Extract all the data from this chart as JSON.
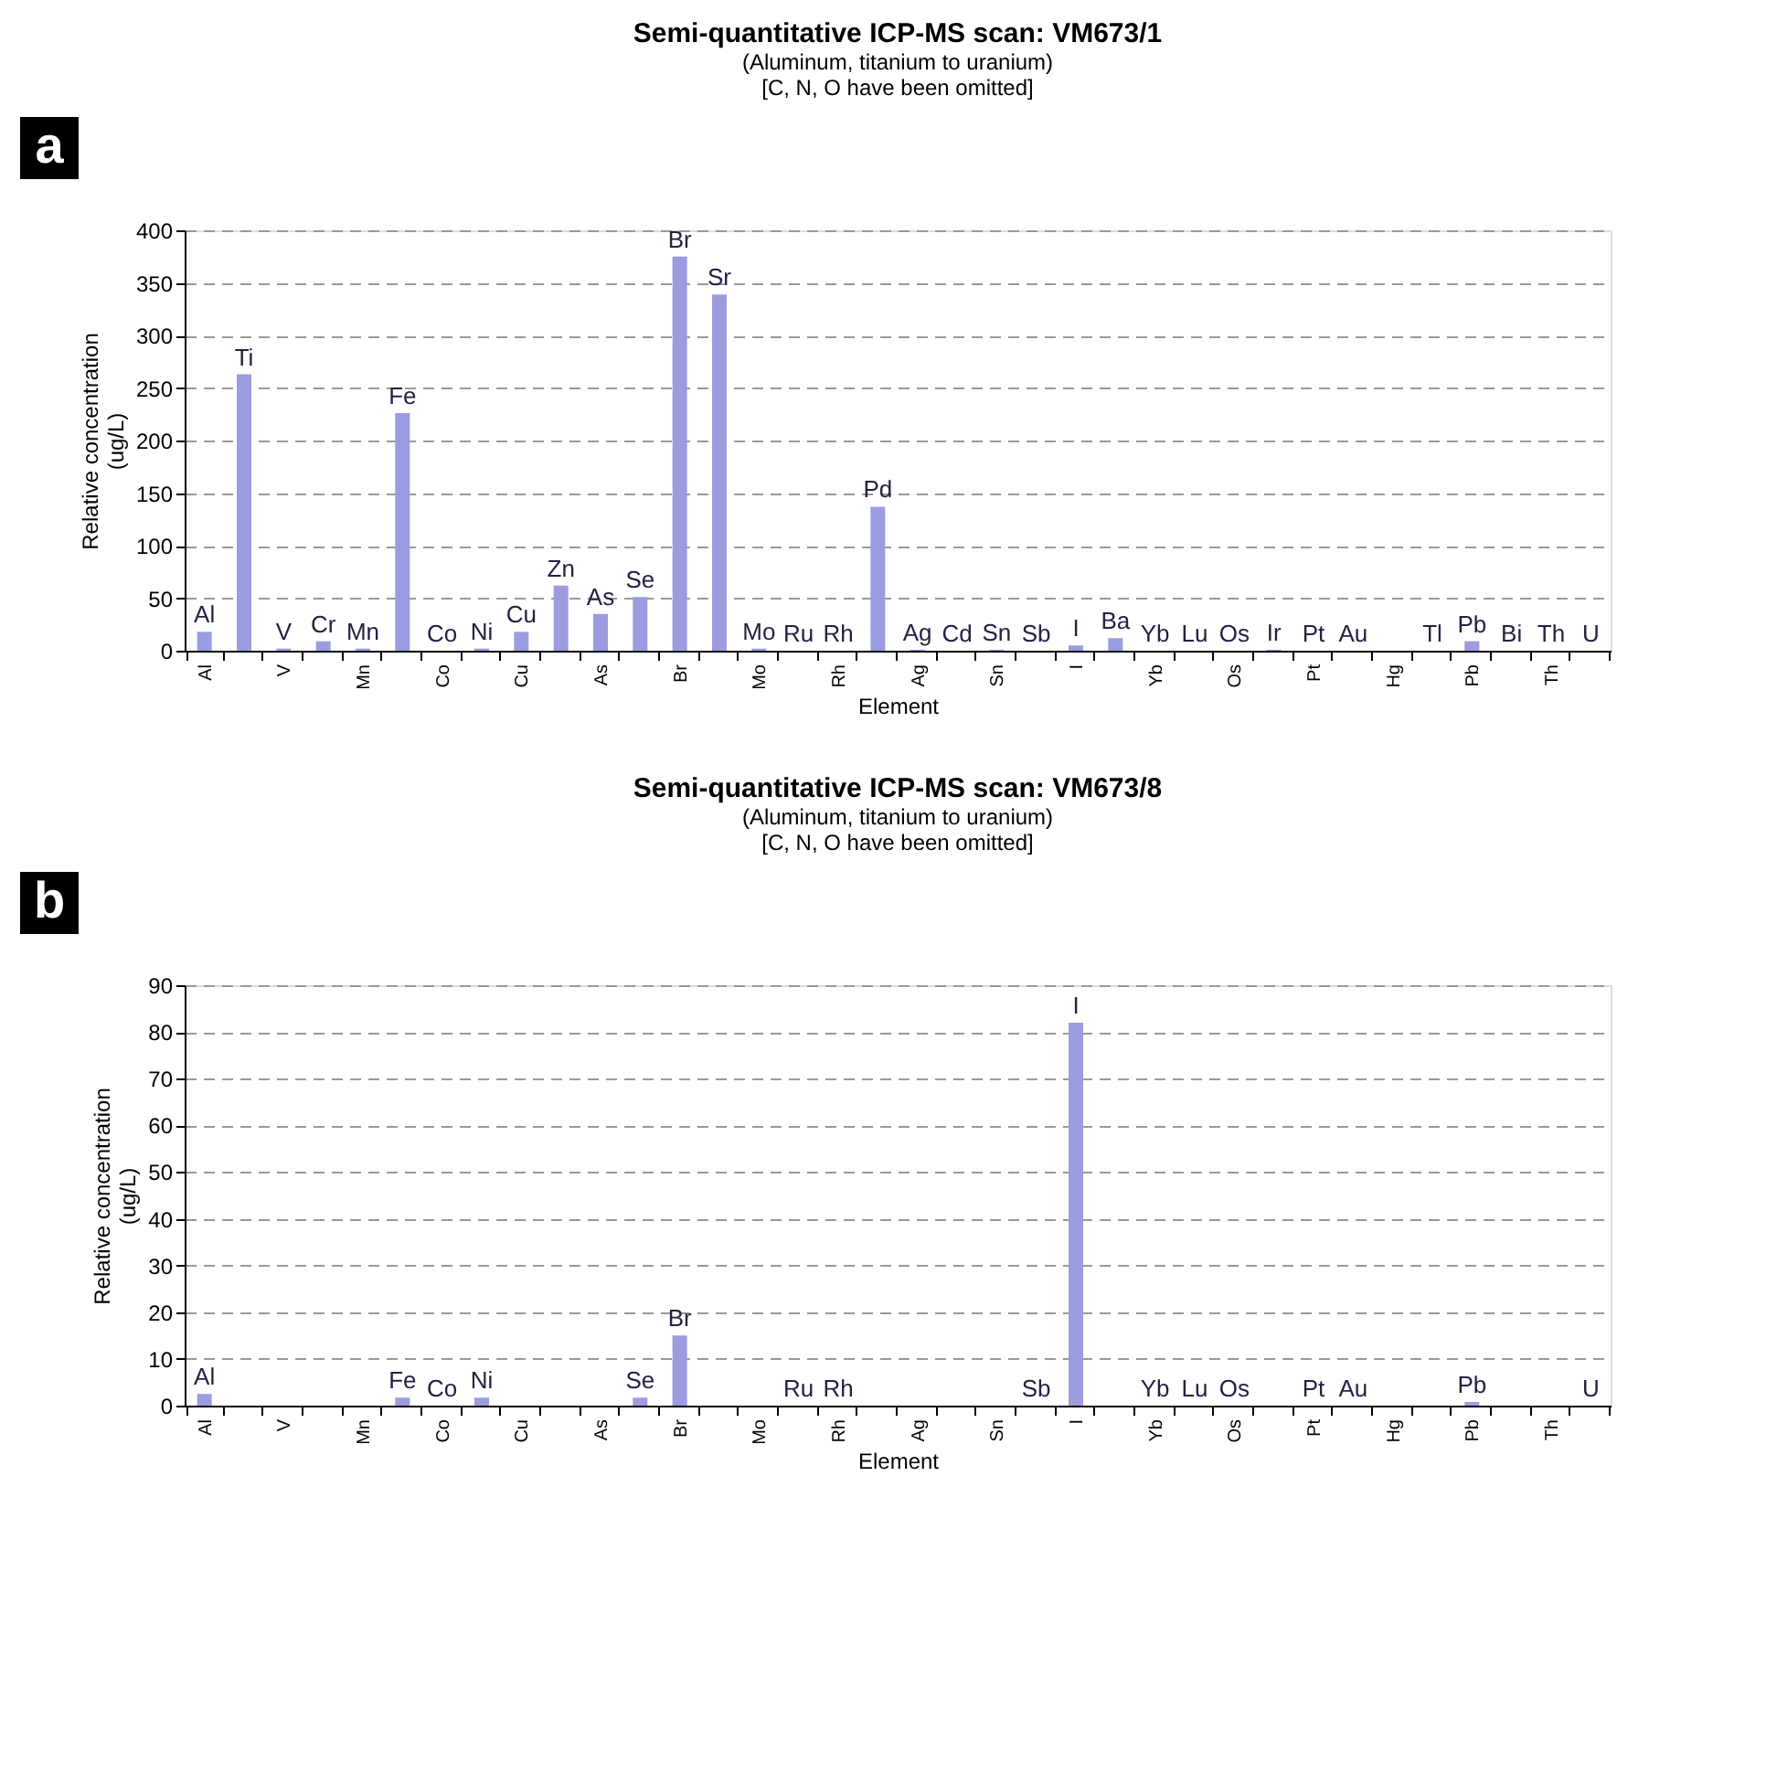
{
  "chart_data": [
    {
      "type": "bar",
      "title": "Semi-quantitative ICP-MS scan: VM673/1",
      "subtitle": "(Aluminum, titanium to uranium)\n[C, N, O have been omitted]",
      "xlabel": "Element",
      "ylabel": "Relative concentration\n(ug/L)",
      "annotations": [
        "a"
      ],
      "categories": [
        "Al",
        null,
        "V",
        null,
        "Mn",
        null,
        "Co",
        null,
        "Cu",
        null,
        "As",
        null,
        "Br",
        null,
        "Mo",
        null,
        "Rh",
        null,
        "Ag",
        null,
        "Sn",
        null,
        "I",
        null,
        "Yb",
        null,
        "Os",
        null,
        "Pt",
        null,
        "Hg",
        null,
        "Pb",
        null,
        "Th",
        null
      ],
      "series": [
        {
          "color": "#9c9ce0",
          "values": [
            18,
            263,
            2,
            9,
            2,
            226,
            0,
            2,
            18,
            62,
            35,
            51,
            375,
            339,
            2,
            0,
            0,
            137,
            1,
            0,
            1,
            0,
            5,
            12,
            0,
            0,
            0,
            1,
            0,
            0,
            0,
            0,
            9,
            0,
            0,
            0
          ],
          "value_labels": [
            "Al",
            "Ti",
            "V",
            "Cr",
            "Mn",
            "Fe",
            "Co",
            "Ni",
            "Cu",
            "Zn",
            "As",
            "Se",
            "Br",
            "Sr",
            "Mo",
            "Ru",
            "Rh",
            "Pd",
            "Ag",
            "Cd",
            "Sn",
            "Sb",
            "I",
            "Ba",
            "Yb",
            "Lu",
            "Os",
            "Ir",
            "Pt",
            "Au",
            null,
            "Tl",
            "Pb",
            "Bi",
            "Th",
            "U"
          ]
        }
      ],
      "ylim": [
        0,
        400
      ],
      "yticks": [
        0,
        50,
        100,
        150,
        200,
        250,
        300,
        350,
        400
      ],
      "grid": "y",
      "legend": false
    },
    {
      "type": "bar",
      "title": "Semi-quantitative ICP-MS scan: VM673/8",
      "subtitle": "(Aluminum, titanium to uranium)\n[C, N, O have been omitted]",
      "xlabel": "Element",
      "ylabel": "Relative concentration\n(ug/L)",
      "annotations": [
        "b"
      ],
      "categories": [
        "Al",
        null,
        "V",
        null,
        "Mn",
        null,
        "Co",
        null,
        "Cu",
        null,
        "As",
        null,
        "Br",
        null,
        "Mo",
        null,
        "Rh",
        null,
        "Ag",
        null,
        "Sn",
        null,
        "I",
        null,
        "Yb",
        null,
        "Os",
        null,
        "Pt",
        null,
        "Hg",
        null,
        "Pb",
        null,
        "Th",
        null
      ],
      "series": [
        {
          "color": "#9c9ce0",
          "values": [
            2.5,
            0,
            0,
            0,
            0,
            1.7,
            0,
            1.7,
            0,
            0,
            0,
            1.7,
            15,
            0,
            0,
            0,
            0,
            0,
            0,
            0,
            0,
            0,
            82,
            0,
            0,
            0,
            0,
            0,
            0,
            0,
            0,
            0,
            0.8,
            0,
            0,
            0
          ],
          "value_labels": [
            "Al",
            null,
            null,
            null,
            null,
            "Fe",
            "Co",
            "Ni",
            null,
            null,
            null,
            "Se",
            "Br",
            null,
            null,
            "Ru",
            "Rh",
            null,
            null,
            null,
            null,
            "Sb",
            "I",
            null,
            "Yb",
            "Lu",
            "Os",
            null,
            "Pt",
            "Au",
            null,
            null,
            "Pb",
            null,
            null,
            "U"
          ]
        }
      ],
      "ylim": [
        0,
        90
      ],
      "yticks": [
        0,
        10,
        20,
        30,
        40,
        50,
        60,
        70,
        80,
        90
      ],
      "grid": "y",
      "legend": false
    }
  ]
}
